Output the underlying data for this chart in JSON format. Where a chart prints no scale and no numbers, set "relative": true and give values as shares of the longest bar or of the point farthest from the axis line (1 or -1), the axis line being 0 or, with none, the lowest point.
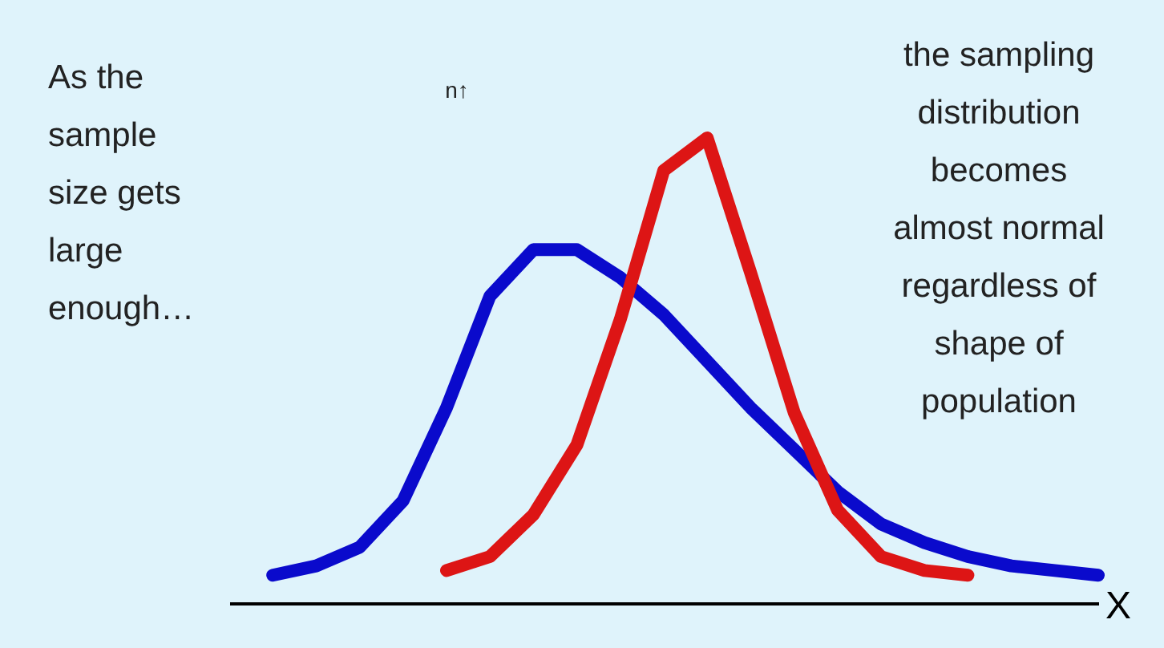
{
  "chart_data": {
    "type": "line",
    "relative": true,
    "xlabel": "X",
    "marker": "none",
    "line_style": "solid",
    "annotations": [
      "As the\nsample\nsize gets\nlarge\nenough…",
      "n↑",
      "the sampling\ndistribution\nbecomes\nalmost normal\nregardless of\nshape of\npopulation"
    ],
    "categories": [
      null,
      null,
      null,
      null,
      null,
      null,
      null,
      null,
      null,
      null,
      null,
      null,
      null,
      null,
      null,
      null,
      null,
      null,
      null,
      null,
      null
    ],
    "series": [
      {
        "color": "#0a0acc",
        "values": [
          null,
          0.06,
          0.08,
          0.12,
          0.22,
          0.42,
          0.66,
          0.76,
          0.76,
          0.7,
          0.62,
          0.52,
          0.42,
          0.33,
          0.24,
          0.17,
          0.13,
          0.1,
          0.08,
          0.07,
          0.06
        ]
      },
      {
        "color": "#dd1515",
        "values": [
          null,
          null,
          null,
          null,
          null,
          0.07,
          0.1,
          0.19,
          0.34,
          0.61,
          0.93,
          1.0,
          0.71,
          0.41,
          0.2,
          0.1,
          0.07,
          0.06,
          null,
          null,
          null
        ]
      }
    ]
  }
}
